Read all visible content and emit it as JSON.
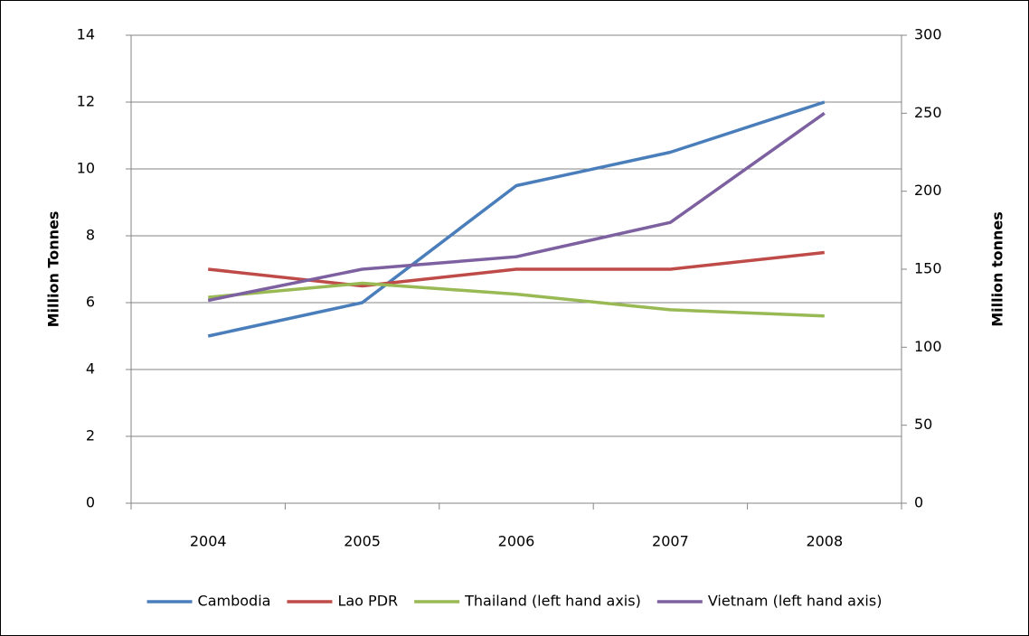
{
  "chart_data": {
    "type": "line",
    "categories": [
      "2004",
      "2005",
      "2006",
      "2007",
      "2008"
    ],
    "y_label": "Million Tonnes",
    "y2_label": "Million tonnes",
    "ylim": [
      0,
      14
    ],
    "yticks": [
      0,
      2,
      4,
      6,
      8,
      10,
      12,
      14
    ],
    "y2lim": [
      0,
      300
    ],
    "y2ticks": [
      0,
      50,
      100,
      150,
      200,
      250,
      300
    ],
    "grid": true,
    "legend": "bottom",
    "series": [
      {
        "name": "Cambodia",
        "color": "#4a7ebb",
        "values": [
          5,
          6,
          9.5,
          10.5,
          12
        ]
      },
      {
        "name": "Lao PDR",
        "color": "#be4b48",
        "values": [
          7,
          6.5,
          7,
          7,
          7.5
        ]
      },
      {
        "name": "Thailand (left hand axis)",
        "color": "#98b954",
        "axis": "y2",
        "values": [
          132,
          141,
          134,
          124,
          120
        ]
      },
      {
        "name": "Vietnam (left hand axis)",
        "color": "#7d60a0",
        "axis": "y2",
        "values": [
          130,
          150,
          158,
          180,
          250
        ]
      }
    ]
  }
}
